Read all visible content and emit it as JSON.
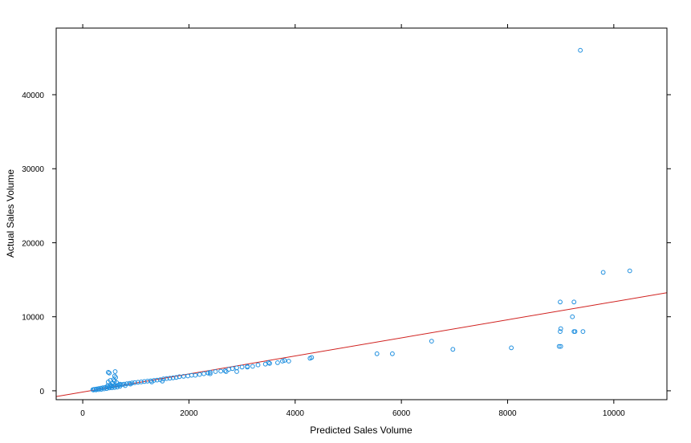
{
  "chart_data": {
    "type": "scatter",
    "xlabel": "Predicted Sales Volume",
    "ylabel": "Actual Sales Volume",
    "xlim": [
      -500,
      11000
    ],
    "ylim": [
      -1200,
      49000
    ],
    "x_ticks": [
      0,
      2000,
      4000,
      6000,
      8000,
      10000
    ],
    "x_tick_labels": [
      "0",
      "2000",
      "4000",
      "6000",
      "8000",
      "10000"
    ],
    "y_ticks": [
      0,
      10000,
      20000,
      30000,
      40000
    ],
    "y_tick_labels": [
      "0",
      "10000",
      "20000",
      "30000",
      "40000"
    ],
    "grid": false,
    "colors": {
      "points": "#1f8fdf",
      "line": "#d0201e",
      "frame": "#000000"
    },
    "regression_line": {
      "slope": 1.22,
      "intercept": -170
    },
    "points": [
      [
        9370,
        46000
      ],
      [
        10300,
        16200
      ],
      [
        9800,
        16000
      ],
      [
        8990,
        12000
      ],
      [
        9250,
        12000
      ],
      [
        9220,
        10000
      ],
      [
        9000,
        8400
      ],
      [
        8990,
        8000
      ],
      [
        9250,
        8000
      ],
      [
        9270,
        8000
      ],
      [
        9420,
        8000
      ],
      [
        8970,
        6000
      ],
      [
        9000,
        6000
      ],
      [
        8070,
        5800
      ],
      [
        6970,
        5600
      ],
      [
        6570,
        6700
      ],
      [
        5540,
        5000
      ],
      [
        5830,
        5000
      ],
      [
        4280,
        4400
      ],
      [
        4310,
        4500
      ],
      [
        3880,
        4000
      ],
      [
        3800,
        4100
      ],
      [
        3760,
        4000
      ],
      [
        3670,
        3800
      ],
      [
        3520,
        3700
      ],
      [
        3440,
        3600
      ],
      [
        3300,
        3500
      ],
      [
        3200,
        3300
      ],
      [
        3100,
        3300
      ],
      [
        3000,
        3200
      ],
      [
        2900,
        3100
      ],
      [
        2820,
        3000
      ],
      [
        2750,
        2900
      ],
      [
        2680,
        2700
      ],
      [
        2600,
        2650
      ],
      [
        2500,
        2600
      ],
      [
        2400,
        2500
      ],
      [
        2360,
        2400
      ],
      [
        2280,
        2300
      ],
      [
        2200,
        2200
      ],
      [
        2120,
        2100
      ],
      [
        2050,
        2100
      ],
      [
        1980,
        2000
      ],
      [
        1900,
        1950
      ],
      [
        1820,
        1900
      ],
      [
        1760,
        1800
      ],
      [
        1700,
        1750
      ],
      [
        1640,
        1700
      ],
      [
        1580,
        1650
      ],
      [
        1520,
        1600
      ],
      [
        1460,
        1500
      ],
      [
        1400,
        1450
      ],
      [
        1340,
        1400
      ],
      [
        1280,
        1350
      ],
      [
        1220,
        1300
      ],
      [
        1160,
        1250
      ],
      [
        1100,
        1200
      ],
      [
        1040,
        1150
      ],
      [
        980,
        1100
      ],
      [
        930,
        1050
      ],
      [
        880,
        1000
      ],
      [
        830,
        950
      ],
      [
        780,
        900
      ],
      [
        740,
        850
      ],
      [
        700,
        800
      ],
      [
        660,
        750
      ],
      [
        620,
        700
      ],
      [
        580,
        650
      ],
      [
        540,
        600
      ],
      [
        500,
        550
      ],
      [
        460,
        500
      ],
      [
        420,
        450
      ],
      [
        380,
        400
      ],
      [
        340,
        350
      ],
      [
        300,
        300
      ],
      [
        260,
        250
      ],
      [
        220,
        200
      ],
      [
        190,
        150
      ],
      [
        2900,
        2600
      ],
      [
        2700,
        2600
      ],
      [
        2400,
        2300
      ],
      [
        3100,
        3200
      ],
      [
        3500,
        3800
      ],
      [
        1500,
        1300
      ],
      [
        1300,
        1200
      ],
      [
        900,
        900
      ],
      [
        800,
        700
      ],
      [
        700,
        600
      ],
      [
        650,
        500
      ],
      [
        600,
        450
      ],
      [
        550,
        400
      ],
      [
        500,
        380
      ],
      [
        450,
        300
      ],
      [
        400,
        250
      ],
      [
        350,
        200
      ],
      [
        300,
        150
      ],
      [
        250,
        120
      ],
      [
        200,
        100
      ],
      [
        480,
        2500
      ],
      [
        500,
        2400
      ],
      [
        610,
        2600
      ],
      [
        600,
        2000
      ],
      [
        620,
        1800
      ],
      [
        520,
        1400
      ],
      [
        480,
        1200
      ],
      [
        580,
        1500
      ],
      [
        640,
        1100
      ],
      [
        560,
        1000
      ],
      [
        700,
        900
      ],
      [
        600,
        1300
      ],
      [
        520,
        800
      ],
      [
        470,
        700
      ],
      [
        540,
        650
      ]
    ]
  }
}
